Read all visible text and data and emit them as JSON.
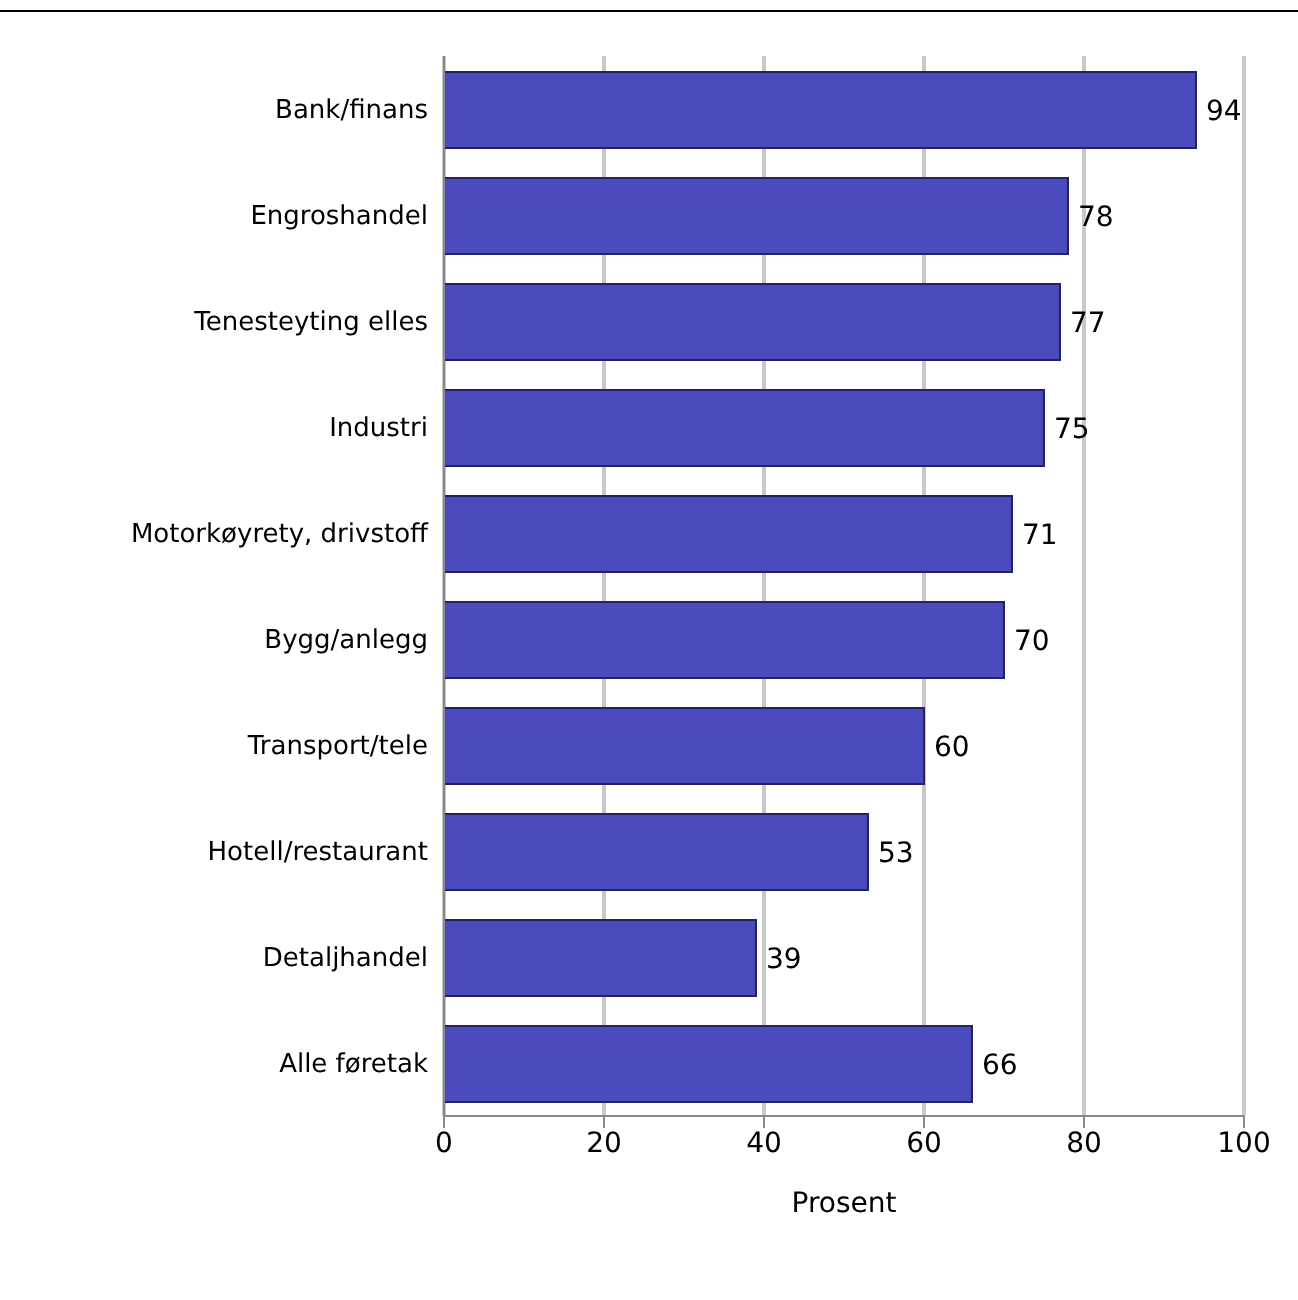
{
  "chart_data": {
    "type": "bar",
    "orientation": "horizontal",
    "xlabel": "Prosent",
    "categories": [
      "Bank/finans",
      "Engroshandel",
      "Tenesteyting elles",
      "Industri",
      "Motorkøyrety, drivstoff",
      "Bygg/anlegg",
      "Transport/tele",
      "Hotell/restaurant",
      "Detaljhandel",
      "Alle føretak"
    ],
    "values": [
      94,
      78,
      77,
      75,
      71,
      70,
      60,
      53,
      39,
      66
    ],
    "color": "#4b4bbd",
    "xlim": [
      0,
      100
    ],
    "xticks": [
      0,
      20,
      40,
      60,
      80,
      100
    ],
    "grid": "x",
    "data_labels": true
  }
}
